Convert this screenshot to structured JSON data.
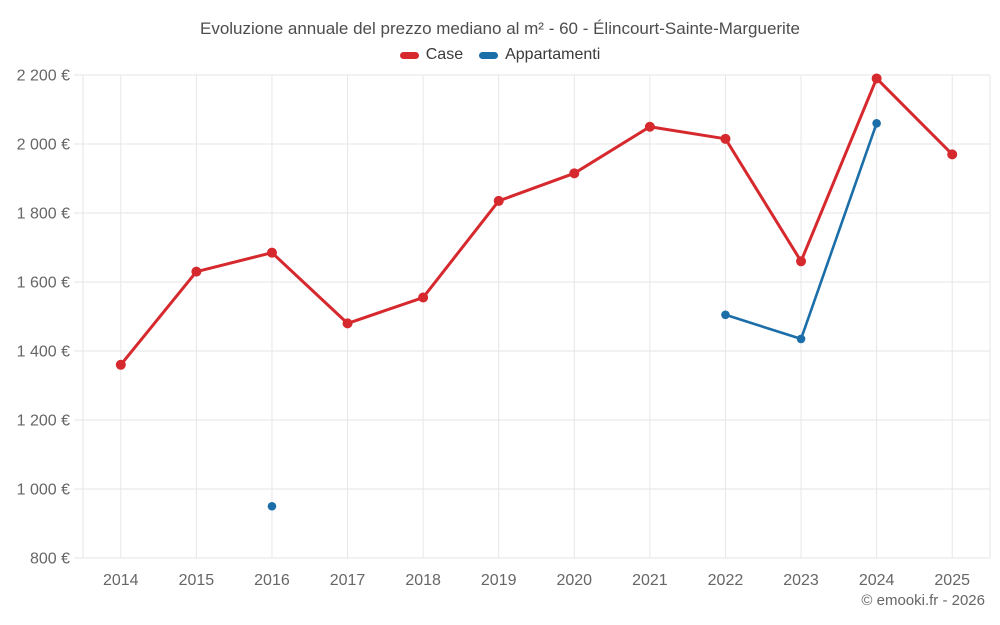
{
  "chart_data": {
    "type": "line",
    "title": "Evoluzione annuale del prezzo mediano al m² - 60 - Élincourt-Sainte-Marguerite",
    "categories": [
      "2014",
      "2015",
      "2016",
      "2017",
      "2018",
      "2019",
      "2020",
      "2021",
      "2022",
      "2023",
      "2024",
      "2025"
    ],
    "series": [
      {
        "name": "Case",
        "color": "#d6292e",
        "line_width": 3,
        "marker_radius": 5,
        "values": [
          1360,
          1630,
          1685,
          1480,
          1555,
          1835,
          1915,
          2050,
          2015,
          1660,
          2190,
          1970
        ]
      },
      {
        "name": "Appartamenti",
        "color": "#1b6ea7",
        "line_width": 2.6,
        "marker_radius": 4.3,
        "values": [
          null,
          null,
          950,
          null,
          null,
          null,
          null,
          null,
          1505,
          1435,
          2060,
          null
        ]
      }
    ],
    "ylim": [
      800,
      2200
    ],
    "ytick_step": 200,
    "ytick_labels": [
      "800 €",
      "1 000 €",
      "1 200 €",
      "1 400 €",
      "1 600 €",
      "1 800 €",
      "2 000 €",
      "2 200 €"
    ],
    "xlabel": "",
    "ylabel": "",
    "grid": true,
    "legend_position": "top",
    "currency": "€"
  },
  "colors": {
    "case_red": "#d6292e",
    "appartamenti_blue": "#1b6ea7",
    "grid_line": "#e6e6e6",
    "axis_text": "#666666",
    "title_text": "#4d4d4d",
    "background": "#ffffff"
  },
  "credit": "© emooki.fr - 2026"
}
